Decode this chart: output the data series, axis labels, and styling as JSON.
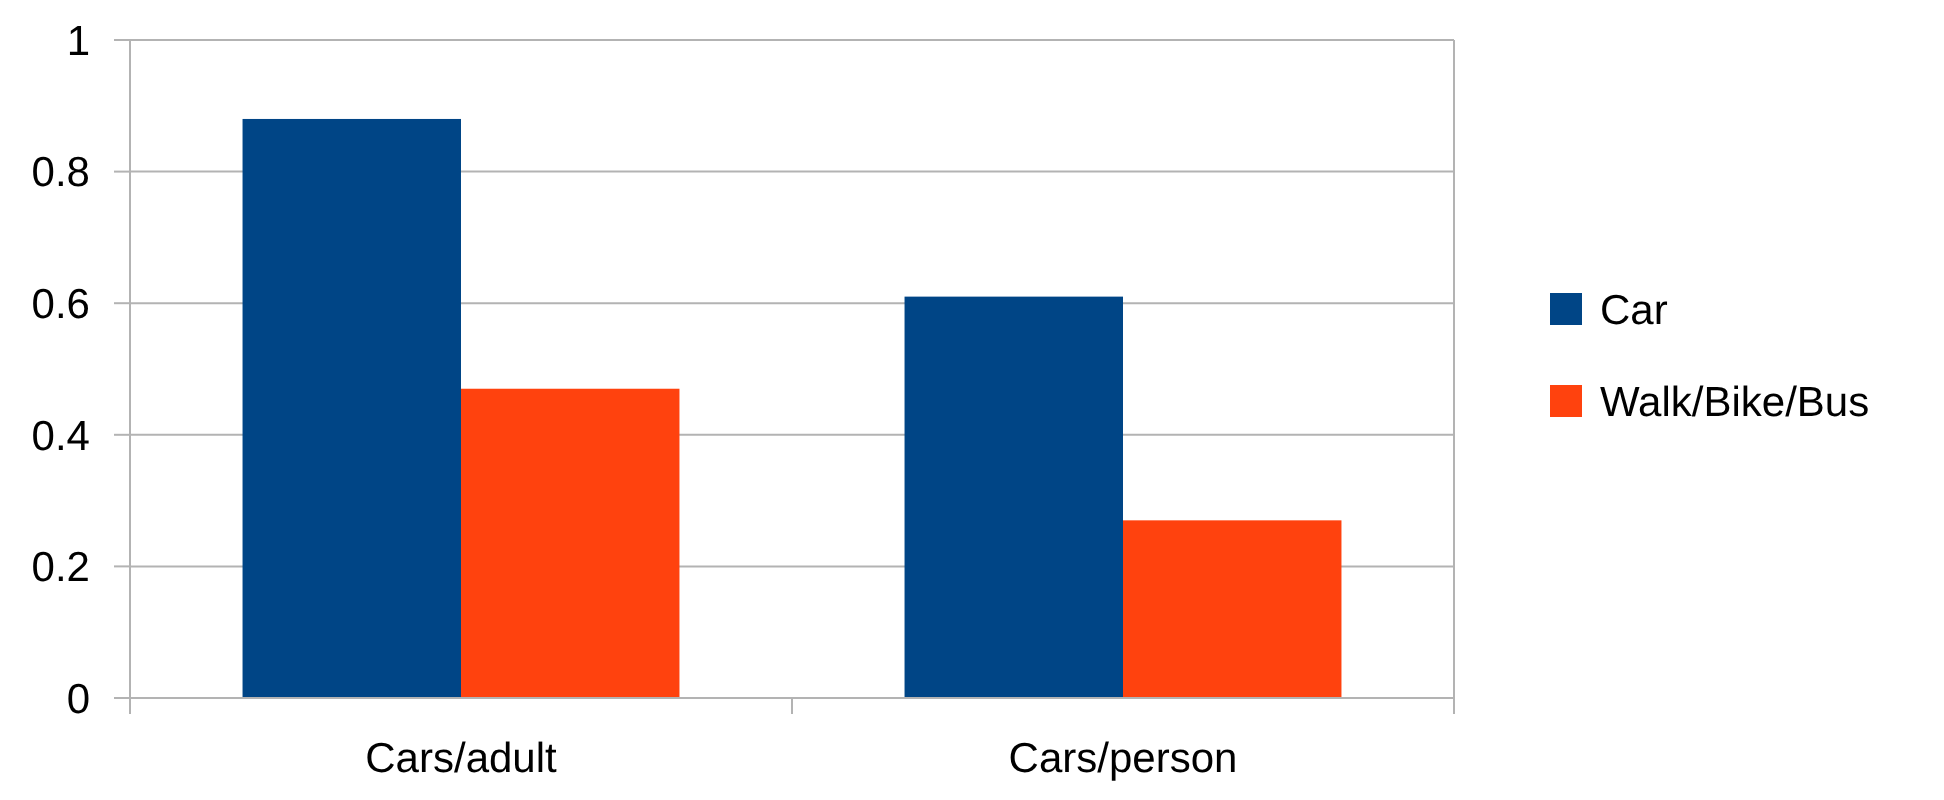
{
  "chart_data": {
    "type": "bar",
    "categories": [
      "Cars/adult",
      "Cars/person"
    ],
    "series": [
      {
        "name": "Car",
        "color": "#004586",
        "values": [
          0.88,
          0.61
        ]
      },
      {
        "name": "Walk/Bike/Bus",
        "color": "#ff420e",
        "values": [
          0.47,
          0.27
        ]
      }
    ],
    "ylim": [
      0,
      1
    ],
    "yticks": [
      0,
      {
        "value": 0.2,
        "label": "0.2"
      },
      {
        "value": 0.4,
        "label": "0.4"
      },
      {
        "value": 0.6,
        "label": "0.6"
      },
      {
        "value": 0.8,
        "label": "0.8"
      },
      1
    ],
    "grid": "y",
    "legend": "right"
  }
}
